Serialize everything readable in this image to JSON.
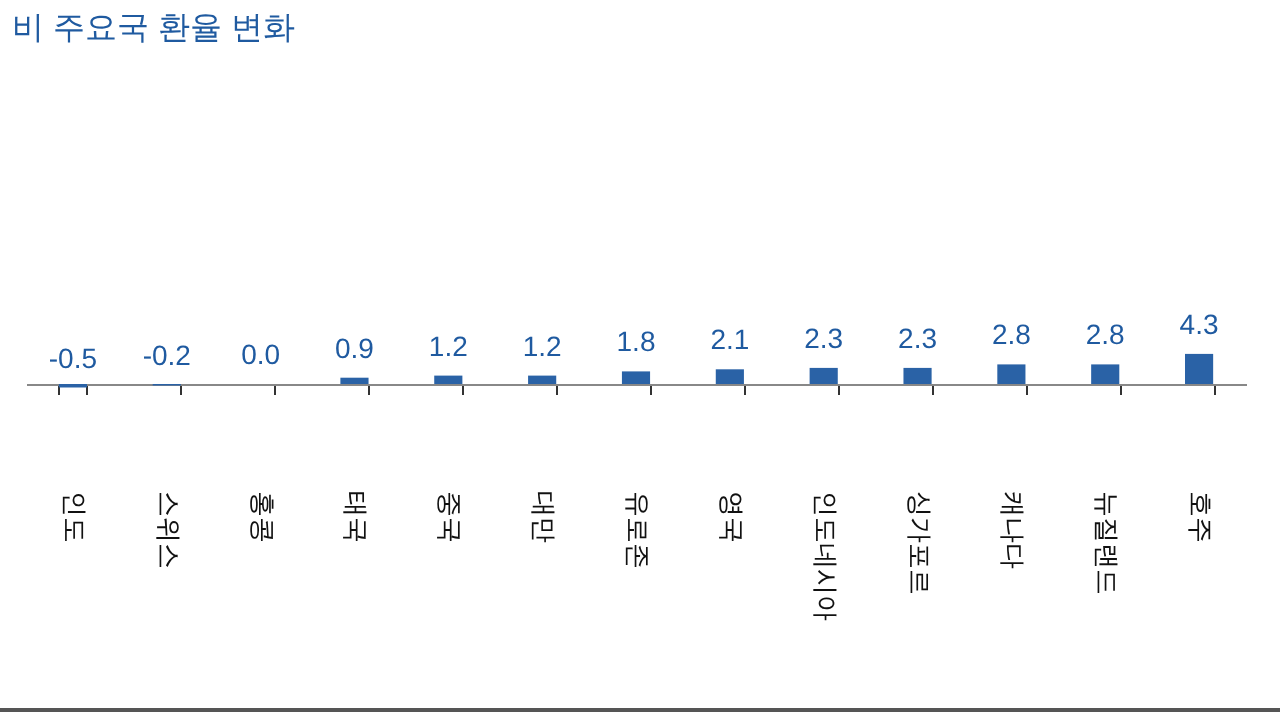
{
  "chart_data": {
    "type": "bar",
    "title": "비 주요국 환율 변화",
    "categories": [
      "인도",
      "스위스",
      "홍콩",
      "태국",
      "중국",
      "대만",
      "유로존",
      "영국",
      "인도네시아",
      "싱가포르",
      "캐나다",
      "뉴질랜드",
      "호주"
    ],
    "values": [
      -0.5,
      -0.2,
      0.0,
      0.9,
      1.2,
      1.2,
      1.8,
      2.1,
      2.3,
      2.3,
      2.8,
      2.8,
      4.3
    ],
    "value_labels": [
      "-0.5",
      "-0.2",
      "0.0",
      "0.9",
      "1.2",
      "1.2",
      "1.8",
      "2.1",
      "2.3",
      "2.3",
      "2.8",
      "2.8",
      "4.3"
    ],
    "color": "#2a62a6"
  }
}
